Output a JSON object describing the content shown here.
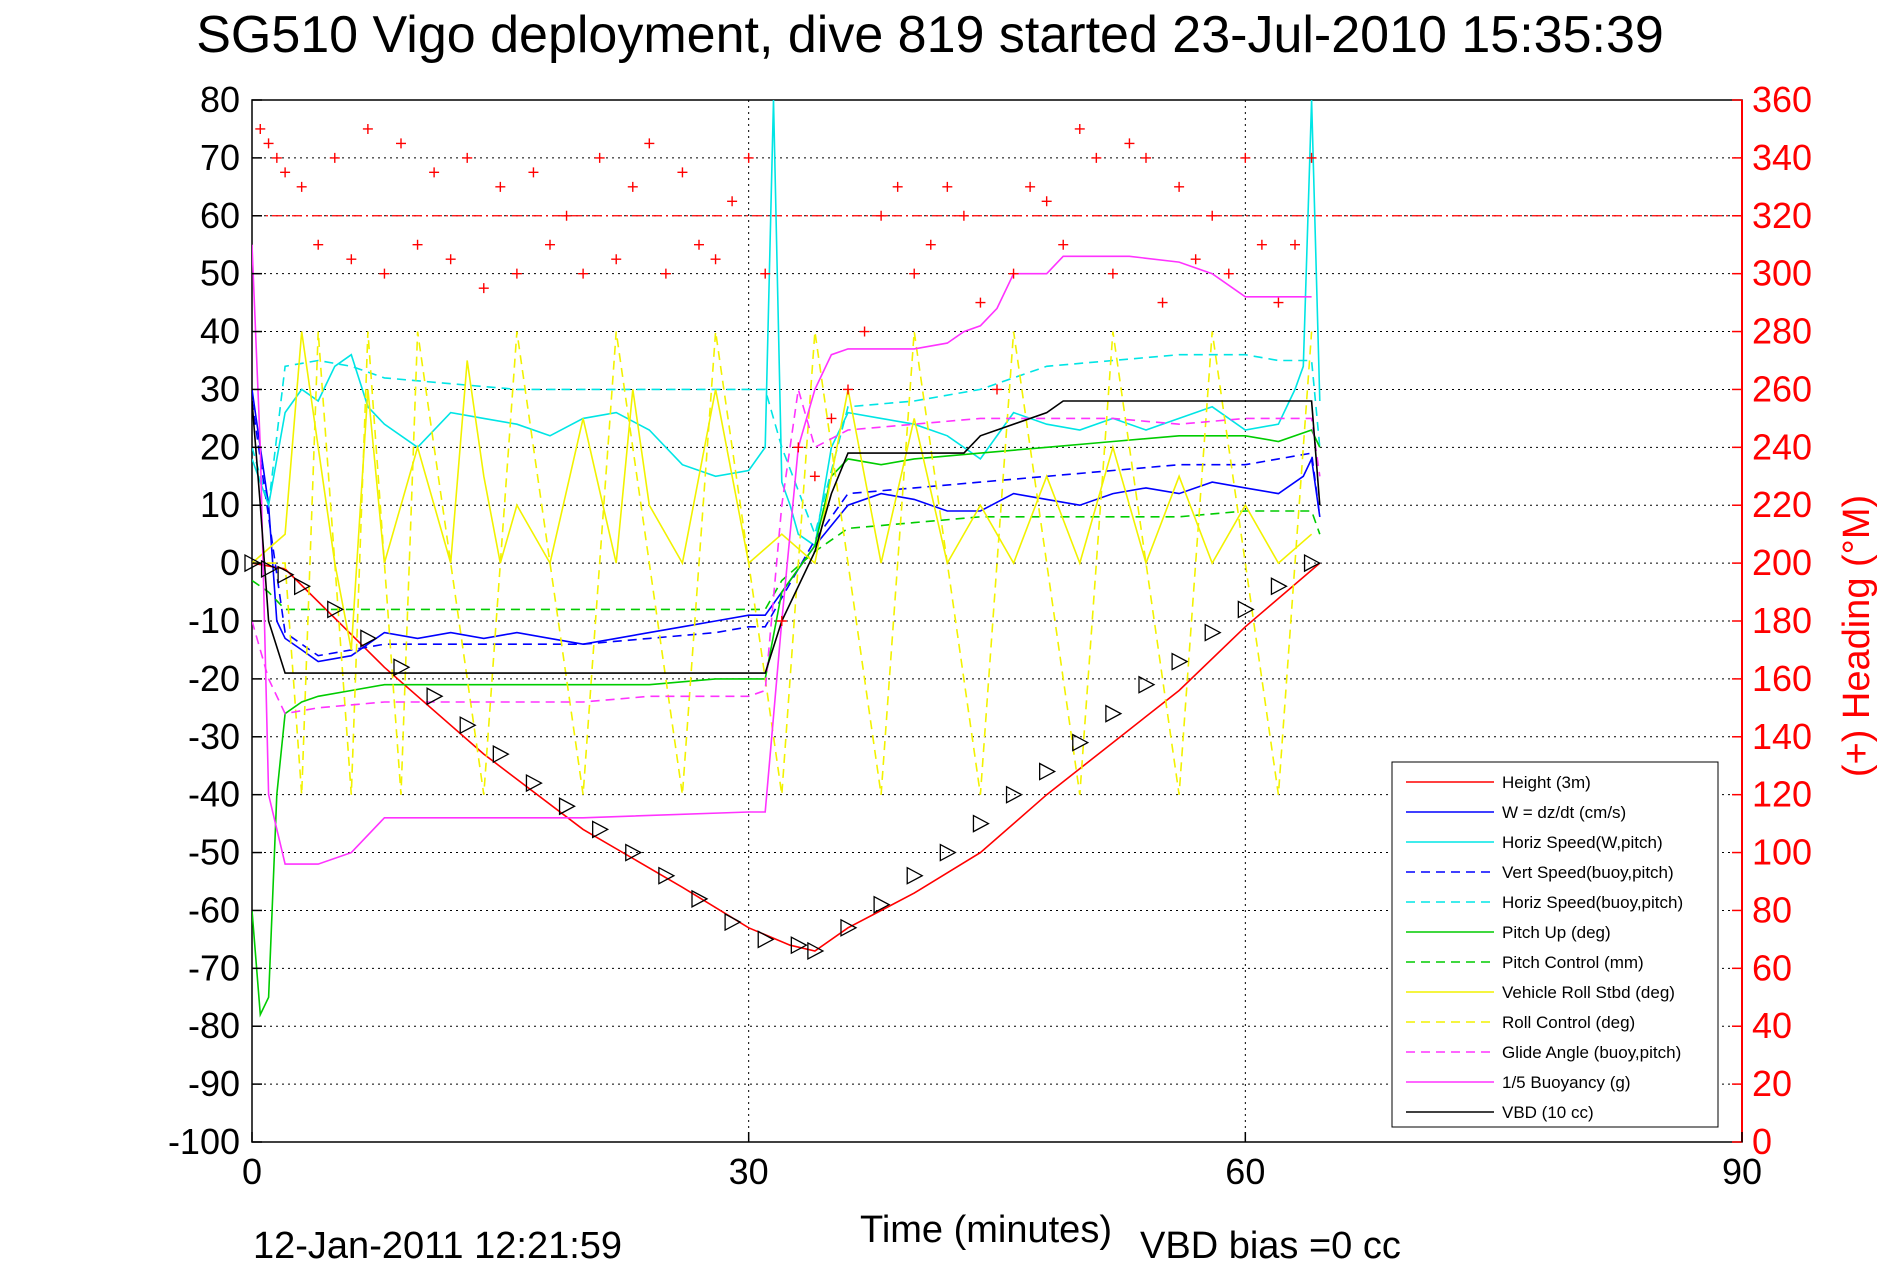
{
  "chart_data": {
    "type": "line",
    "title": "SG510 Vigo deployment, dive 819 started 23-Jul-2010 15:35:39",
    "xlabel": "Time (minutes)",
    "ylabel": "",
    "ylabel_right": "(+) Heading (°M)",
    "xlim": [
      0,
      90
    ],
    "ylim": [
      -100,
      80
    ],
    "ylim_right": [
      0,
      360
    ],
    "xticks": [
      "0",
      "30",
      "60",
      "90"
    ],
    "yticks": [
      "80",
      "70",
      "60",
      "50",
      "40",
      "30",
      "20",
      "10",
      "0",
      "-10",
      "-20",
      "-30",
      "-40",
      "-50",
      "-60",
      "-70",
      "-80",
      "-90",
      "-100"
    ],
    "yticks_right": [
      "360",
      "340",
      "320",
      "300",
      "280",
      "260",
      "240",
      "220",
      "200",
      "180",
      "160",
      "140",
      "120",
      "100",
      "80",
      "60",
      "40",
      "20",
      "0"
    ],
    "grid": true,
    "legend_position": "bottom-right",
    "footer_left": "12-Jan-2011 12:21:59",
    "footer_right": "VBD bias =0 cc",
    "colors": {
      "axis_right": "#ff0000",
      "heading": "#ff0000"
    },
    "heading_ref": 320,
    "series": [
      {
        "name": "Height (3m)",
        "color": "#ff0000",
        "dash": false,
        "x": [
          0,
          2,
          8,
          14,
          20,
          26,
          30,
          32.5,
          34,
          36,
          40,
          44,
          48,
          52,
          56,
          60,
          64.5
        ],
        "y": [
          0,
          -1,
          -18,
          -33,
          -46,
          -56,
          -63,
          -66,
          -67,
          -63,
          -57,
          -50,
          -40,
          -31,
          -22,
          -11,
          0
        ]
      },
      {
        "name": "W = dz/dt (cm/s)",
        "color": "#0000ff",
        "dash": false,
        "x": [
          0,
          1,
          1.5,
          2,
          3,
          4,
          6,
          8,
          10,
          12,
          14,
          16,
          18,
          20,
          22,
          24,
          26,
          28,
          30,
          31,
          32,
          34,
          36,
          38,
          40,
          42,
          44,
          46,
          48,
          50,
          52,
          54,
          56,
          58,
          60,
          62,
          63.5,
          64,
          64.5
        ],
        "y": [
          30,
          10,
          -10,
          -13,
          -15,
          -17,
          -16,
          -12,
          -13,
          -12,
          -13,
          -12,
          -13,
          -14,
          -13,
          -12,
          -11,
          -10,
          -9,
          -9,
          -5,
          3,
          10,
          12,
          11,
          9,
          9,
          12,
          11,
          10,
          12,
          13,
          12,
          14,
          13,
          12,
          15,
          18,
          8
        ]
      },
      {
        "name": "Horiz Speed(W,pitch)",
        "color": "#00e5e5",
        "dash": false,
        "x": [
          0,
          1,
          2,
          3,
          4,
          5,
          6,
          7,
          8,
          10,
          12,
          14,
          16,
          18,
          20,
          22,
          24,
          26,
          28,
          30,
          31,
          31.5,
          32,
          32.5,
          33,
          34,
          35,
          36,
          38,
          40,
          42,
          44,
          46,
          48,
          50,
          52,
          54,
          56,
          58,
          60,
          62,
          63,
          63.5,
          64,
          64.5
        ],
        "y": [
          18,
          10,
          26,
          30,
          28,
          34,
          36,
          27,
          24,
          20,
          26,
          25,
          24,
          22,
          25,
          26,
          23,
          17,
          15,
          16,
          20,
          80,
          14,
          10,
          5,
          3,
          20,
          26,
          25,
          24,
          22,
          18,
          26,
          24,
          23,
          25,
          23,
          25,
          27,
          23,
          24,
          30,
          34,
          80,
          28
        ]
      },
      {
        "name": "Vert Speed(buoy,pitch)",
        "color": "#0000ff",
        "dash": true,
        "x": [
          0,
          1,
          2,
          4,
          6,
          8,
          12,
          16,
          20,
          24,
          28,
          30,
          31,
          32,
          34,
          36,
          40,
          44,
          48,
          52,
          56,
          60,
          62,
          64,
          64.5
        ],
        "y": [
          28,
          8,
          -12,
          -16,
          -15,
          -14,
          -14,
          -14,
          -14,
          -13,
          -12,
          -11,
          -11,
          -6,
          4,
          12,
          13,
          14,
          15,
          16,
          17,
          17,
          18,
          19,
          8
        ]
      },
      {
        "name": "Horiz Speed(buoy,pitch)",
        "color": "#00e5e5",
        "dash": true,
        "x": [
          0,
          1,
          2,
          4,
          6,
          8,
          12,
          16,
          20,
          24,
          28,
          30,
          31,
          32,
          34,
          36,
          40,
          44,
          48,
          52,
          56,
          60,
          62,
          64,
          64.5
        ],
        "y": [
          20,
          10,
          34,
          35,
          34,
          32,
          31,
          30,
          30,
          30,
          30,
          30,
          30,
          20,
          5,
          27,
          28,
          30,
          34,
          35,
          36,
          36,
          35,
          35,
          20
        ]
      },
      {
        "name": "Pitch Up (deg)",
        "color": "#00cc00",
        "dash": false,
        "x": [
          0,
          0.5,
          1,
          1.5,
          2,
          3,
          4,
          6,
          8,
          12,
          16,
          20,
          24,
          28,
          30,
          31,
          32,
          34,
          35,
          36,
          38,
          40,
          44,
          48,
          52,
          56,
          60,
          62,
          64,
          64.5
        ],
        "y": [
          -60,
          -78,
          -75,
          -40,
          -26,
          -24,
          -23,
          -22,
          -21,
          -21,
          -21,
          -21,
          -21,
          -20,
          -20,
          -20,
          -5,
          3,
          15,
          18,
          17,
          18,
          19,
          20,
          21,
          22,
          22,
          21,
          23,
          20
        ]
      },
      {
        "name": "Pitch Control (mm)",
        "color": "#00cc00",
        "dash": true,
        "x": [
          0,
          1,
          2,
          4,
          8,
          12,
          16,
          20,
          24,
          28,
          30,
          31,
          32,
          34,
          36,
          40,
          44,
          48,
          52,
          56,
          60,
          64,
          64.5
        ],
        "y": [
          -3,
          -5,
          -8,
          -8,
          -8,
          -8,
          -8,
          -8,
          -8,
          -8,
          -8,
          -8,
          -3,
          2,
          6,
          7,
          8,
          8,
          8,
          8,
          9,
          9,
          5
        ]
      },
      {
        "name": "Vehicle Roll Stbd (deg)",
        "color": "#f2f200",
        "dash": false,
        "x": [
          0,
          2,
          3,
          4,
          5,
          6,
          7,
          8,
          10,
          12,
          13,
          14,
          15,
          16,
          18,
          20,
          22,
          23,
          24,
          26,
          28,
          30,
          32,
          34,
          36,
          38,
          40,
          42,
          44,
          46,
          48,
          50,
          52,
          54,
          56,
          58,
          60,
          62,
          64
        ],
        "y": [
          0,
          5,
          40,
          20,
          0,
          -15,
          30,
          0,
          20,
          0,
          35,
          15,
          0,
          10,
          0,
          25,
          0,
          30,
          10,
          0,
          30,
          0,
          5,
          0,
          30,
          0,
          25,
          0,
          10,
          0,
          15,
          0,
          20,
          0,
          15,
          0,
          10,
          0,
          5
        ]
      },
      {
        "name": "Roll Control (deg)",
        "color": "#f2f200",
        "dash": true,
        "x": [
          0,
          2,
          3,
          4,
          5,
          6,
          7,
          8,
          9,
          10,
          12,
          14,
          16,
          18,
          20,
          22,
          24,
          26,
          28,
          30,
          32,
          34,
          36,
          38,
          40,
          42,
          44,
          46,
          48,
          50,
          52,
          54,
          56,
          58,
          60,
          62,
          64
        ],
        "y": [
          0,
          0,
          -40,
          40,
          0,
          -40,
          40,
          0,
          -40,
          40,
          0,
          -40,
          40,
          0,
          -40,
          40,
          0,
          -40,
          40,
          0,
          -40,
          40,
          0,
          -40,
          40,
          0,
          -40,
          40,
          0,
          -40,
          40,
          0,
          -40,
          40,
          0,
          -40,
          40
        ]
      },
      {
        "name": "Glide Angle (buoy,pitch)",
        "color": "#ff33ff",
        "dash": true,
        "x": [
          0,
          1,
          2,
          4,
          8,
          12,
          16,
          20,
          24,
          28,
          30,
          31,
          32,
          33,
          34,
          36,
          40,
          44,
          48,
          52,
          56,
          60,
          64,
          64.5
        ],
        "y": [
          -10,
          -20,
          -26,
          -25,
          -24,
          -24,
          -24,
          -24,
          -23,
          -23,
          -23,
          -22,
          10,
          30,
          20,
          23,
          24,
          25,
          25,
          25,
          24,
          25,
          25,
          15
        ]
      },
      {
        "name": "1/5 Buoyancy (g)",
        "color": "#ff33ff",
        "dash": false,
        "x": [
          0,
          0.5,
          1,
          2,
          4,
          6,
          8,
          10,
          20,
          30,
          31,
          32,
          33,
          34,
          35,
          36,
          40,
          42,
          43,
          44,
          45,
          46,
          48,
          49,
          50,
          53,
          56,
          58,
          60,
          62,
          64
        ],
        "y": [
          55,
          20,
          -40,
          -52,
          -52,
          -50,
          -44,
          -44,
          -44,
          -43,
          -43,
          -10,
          20,
          30,
          36,
          37,
          37,
          38,
          40,
          41,
          44,
          50,
          50,
          53,
          53,
          53,
          52,
          50,
          46,
          46,
          46
        ]
      },
      {
        "name": "VBD (10 cc)",
        "color": "#000000",
        "dash": false,
        "x": [
          0,
          0.5,
          1,
          2,
          4,
          8,
          12,
          16,
          20,
          24,
          28,
          30,
          31,
          32,
          34,
          35,
          36,
          40,
          43,
          44,
          45,
          48,
          49,
          52,
          56,
          60,
          64,
          64.5
        ],
        "y": [
          28,
          10,
          -10,
          -19,
          -19,
          -19,
          -19,
          -19,
          -19,
          -19,
          -19,
          -19,
          -19,
          -10,
          2,
          12,
          19,
          19,
          19,
          22,
          23,
          26,
          28,
          28,
          28,
          28,
          28,
          10
        ]
      }
    ],
    "depth_markers": {
      "x": [
        0,
        1,
        2,
        3,
        5,
        7,
        9,
        11,
        13,
        15,
        17,
        19,
        21,
        23,
        25,
        27,
        29,
        31,
        33,
        34,
        36,
        38,
        40,
        42,
        44,
        46,
        48,
        50,
        52,
        54,
        56,
        58,
        60,
        62,
        64
      ],
      "y": [
        0,
        -1,
        -2,
        -4,
        -8,
        -13,
        -18,
        -23,
        -28,
        -33,
        -38,
        -42,
        -46,
        -50,
        -54,
        -58,
        -62,
        -65,
        -66,
        -67,
        -63,
        -59,
        -54,
        -50,
        -45,
        -40,
        -36,
        -31,
        -26,
        -21,
        -17,
        -12,
        -8,
        -4,
        0
      ]
    },
    "heading": {
      "x": [
        0.5,
        1,
        1.5,
        2,
        3,
        4,
        5,
        6,
        7,
        8,
        9,
        10,
        11,
        12,
        13,
        14,
        15,
        16,
        17,
        18,
        19,
        20,
        21,
        22,
        23,
        24,
        25,
        26,
        27,
        28,
        29,
        30,
        31,
        32,
        33,
        34,
        35,
        36,
        37,
        38,
        39,
        40,
        41,
        42,
        43,
        44,
        45,
        46,
        47,
        48,
        49,
        50,
        51,
        52,
        53,
        54,
        55,
        56,
        57,
        58,
        59,
        60,
        61,
        62,
        63,
        64
      ],
      "y": [
        350,
        345,
        340,
        335,
        330,
        310,
        340,
        305,
        350,
        300,
        345,
        310,
        335,
        305,
        340,
        295,
        330,
        300,
        335,
        310,
        320,
        300,
        340,
        305,
        330,
        345,
        300,
        335,
        310,
        305,
        325,
        340,
        300,
        180,
        240,
        230,
        250,
        260,
        280,
        320,
        330,
        300,
        310,
        330,
        320,
        290,
        260,
        300,
        330,
        325,
        310,
        350,
        340,
        300,
        345,
        340,
        290,
        330,
        305,
        320,
        300,
        340,
        310,
        290,
        310,
        340
      ]
    }
  }
}
